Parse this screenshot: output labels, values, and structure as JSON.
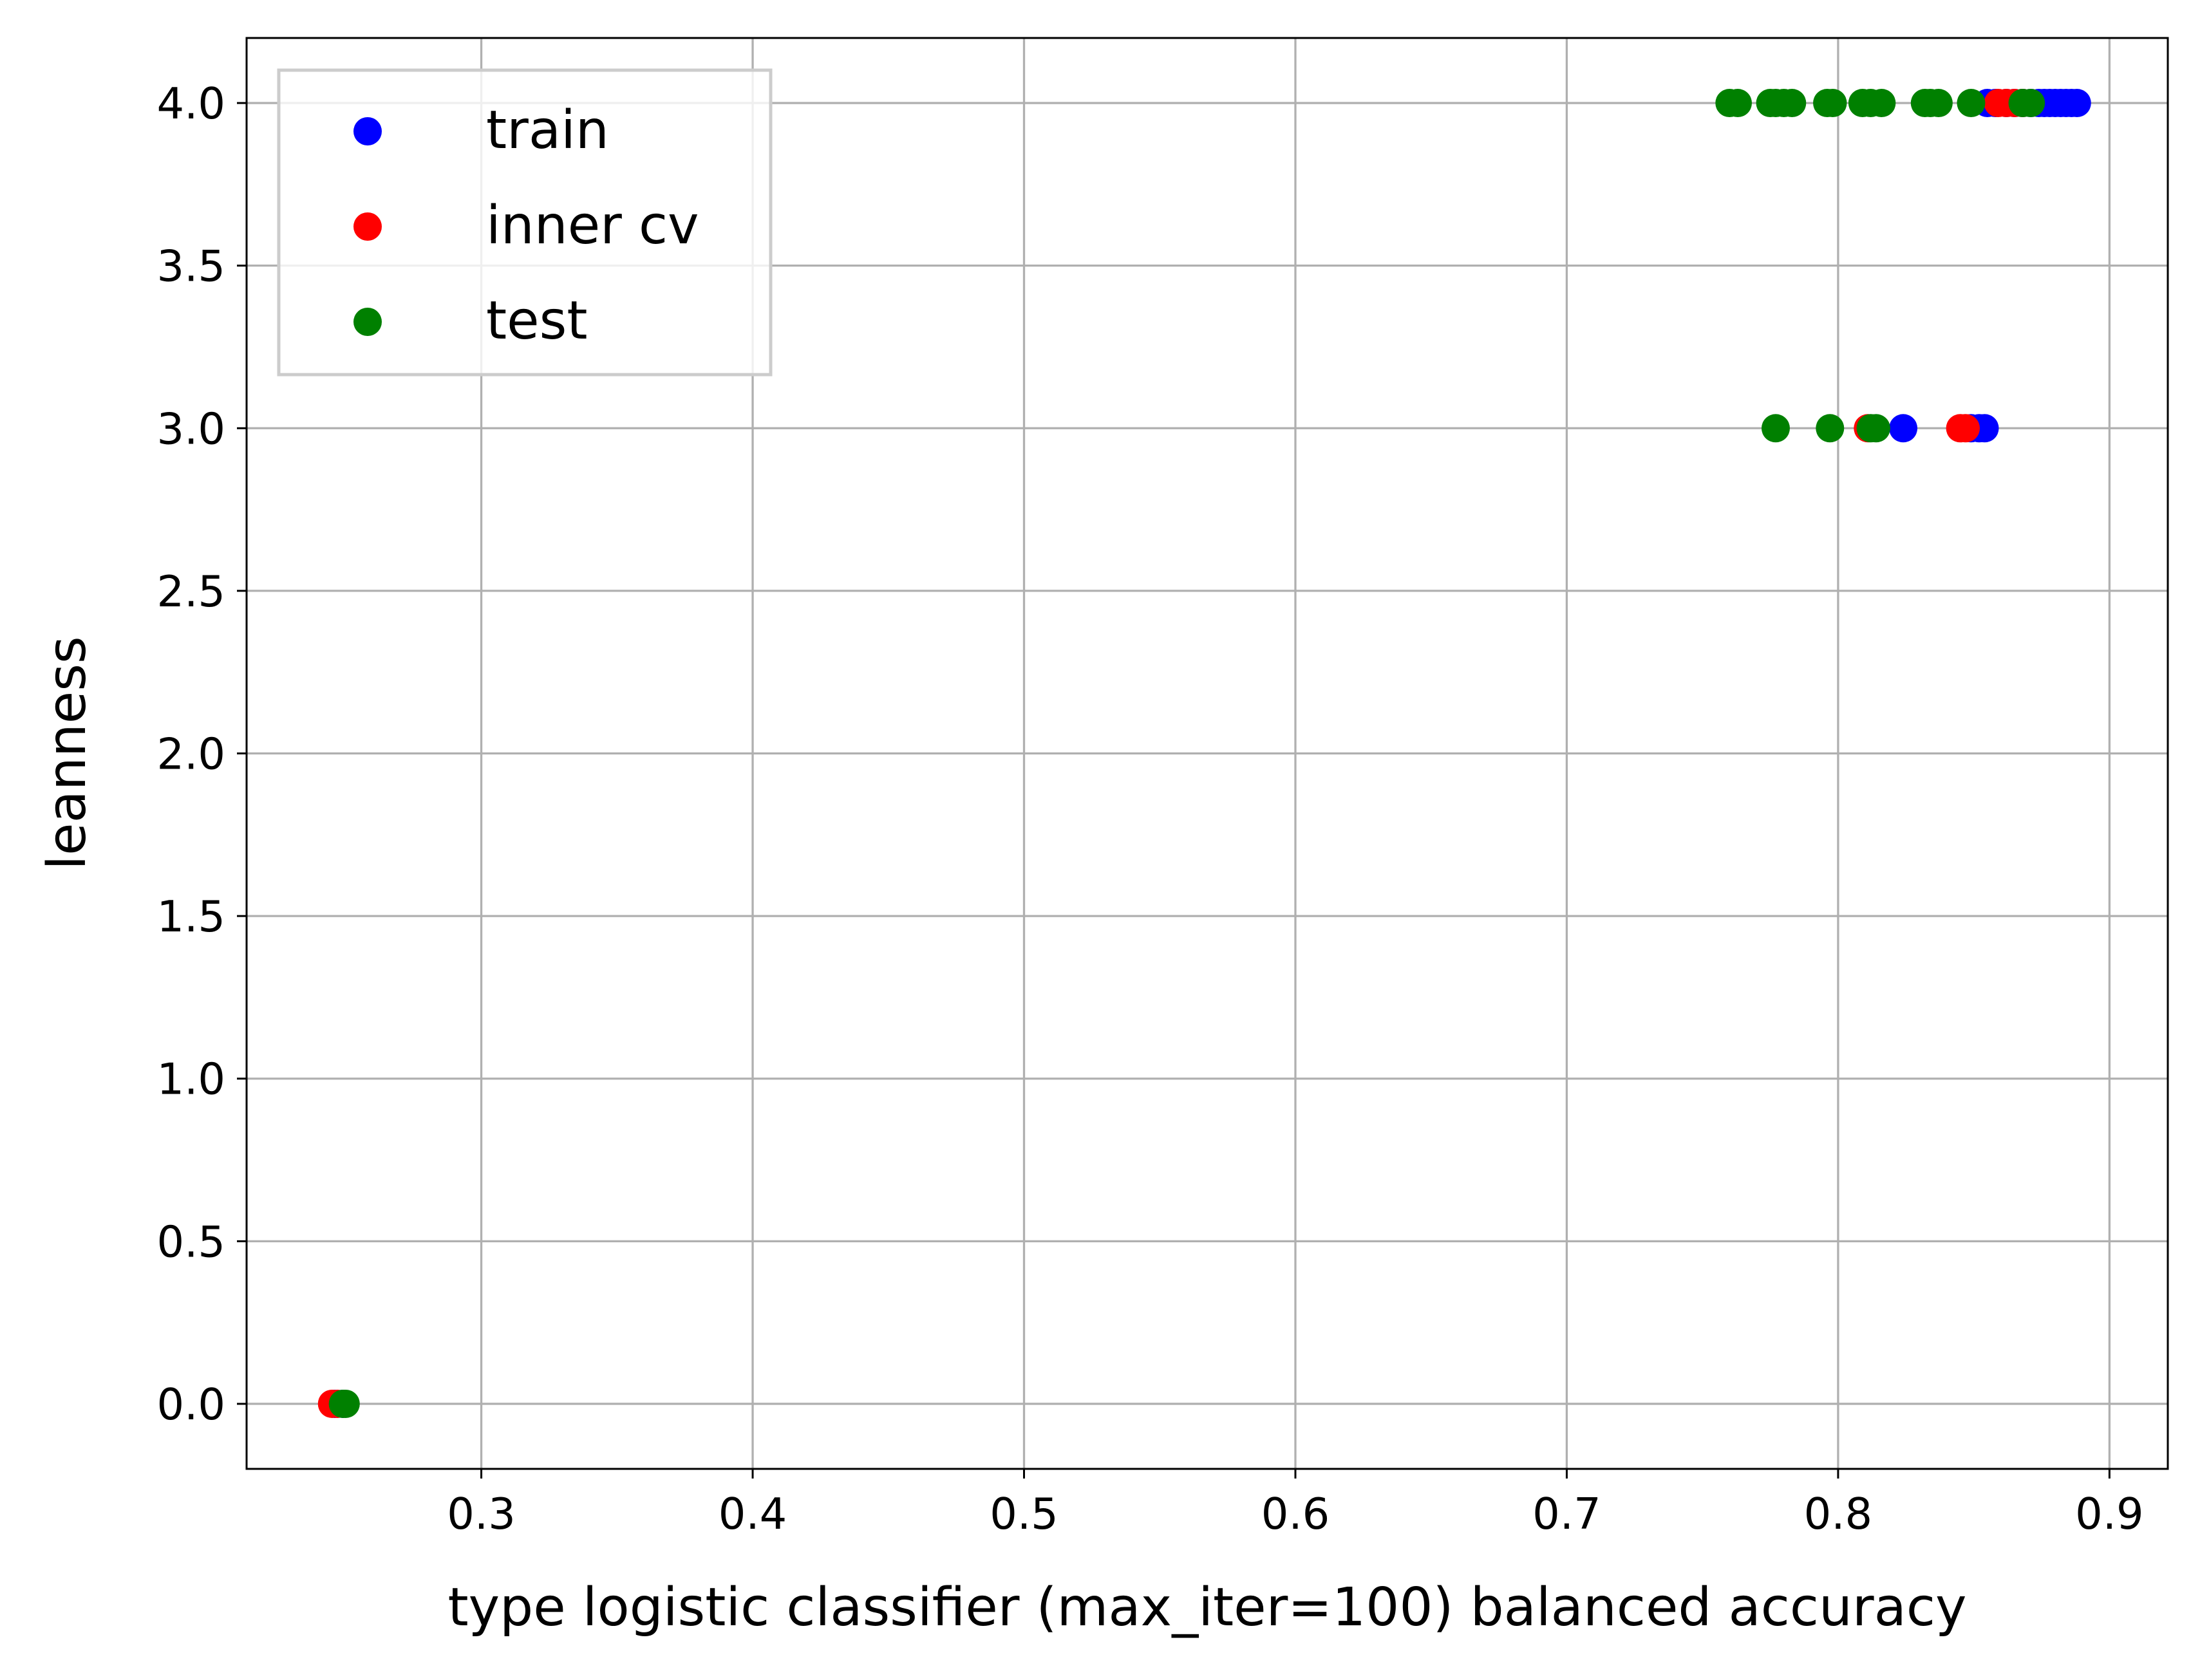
{
  "chart_data": {
    "type": "scatter",
    "title": "",
    "xlabel": "type logistic classifier (max_iter=100) balanced accuracy",
    "ylabel": "leanness",
    "xlim": [
      0.2135,
      0.9215
    ],
    "ylim": [
      -0.2,
      4.2
    ],
    "xticks": [
      0.3,
      0.4,
      0.5,
      0.6,
      0.7,
      0.8,
      0.9
    ],
    "xtick_labels": [
      "0.3",
      "0.4",
      "0.5",
      "0.6",
      "0.7",
      "0.8",
      "0.9"
    ],
    "yticks": [
      0.0,
      0.5,
      1.0,
      1.5,
      2.0,
      2.5,
      3.0,
      3.5,
      4.0
    ],
    "ytick_labels": [
      "0.0",
      "0.5",
      "1.0",
      "1.5",
      "2.0",
      "2.5",
      "3.0",
      "3.5",
      "4.0"
    ],
    "grid": true,
    "legend_position": "top-left",
    "series": [
      {
        "name": "train",
        "color": "#0000ff",
        "points": [
          [
            0.246,
            0.0
          ],
          [
            0.249,
            0.0
          ],
          [
            0.824,
            3.0
          ],
          [
            0.849,
            3.0
          ],
          [
            0.852,
            3.0
          ],
          [
            0.854,
            3.0
          ],
          [
            0.855,
            4.0
          ],
          [
            0.858,
            4.0
          ],
          [
            0.862,
            4.0
          ],
          [
            0.865,
            4.0
          ],
          [
            0.868,
            4.0
          ],
          [
            0.871,
            4.0
          ],
          [
            0.874,
            4.0
          ],
          [
            0.876,
            4.0
          ],
          [
            0.878,
            4.0
          ],
          [
            0.88,
            4.0
          ],
          [
            0.882,
            4.0
          ],
          [
            0.884,
            4.0
          ],
          [
            0.886,
            4.0
          ],
          [
            0.888,
            4.0
          ]
        ]
      },
      {
        "name": "inner cv",
        "color": "#ff0000",
        "points": [
          [
            0.245,
            0.0
          ],
          [
            0.247,
            0.0
          ],
          [
            0.811,
            3.0
          ],
          [
            0.845,
            3.0
          ],
          [
            0.847,
            3.0
          ],
          [
            0.859,
            4.0
          ],
          [
            0.862,
            4.0
          ],
          [
            0.865,
            4.0
          ],
          [
            0.868,
            4.0
          ]
        ]
      },
      {
        "name": "test",
        "color": "#008000",
        "points": [
          [
            0.249,
            0.0
          ],
          [
            0.25,
            0.0
          ],
          [
            0.777,
            3.0
          ],
          [
            0.797,
            3.0
          ],
          [
            0.812,
            3.0
          ],
          [
            0.814,
            3.0
          ],
          [
            0.76,
            4.0
          ],
          [
            0.763,
            4.0
          ],
          [
            0.775,
            4.0
          ],
          [
            0.777,
            4.0
          ],
          [
            0.78,
            4.0
          ],
          [
            0.783,
            4.0
          ],
          [
            0.796,
            4.0
          ],
          [
            0.798,
            4.0
          ],
          [
            0.809,
            4.0
          ],
          [
            0.812,
            4.0
          ],
          [
            0.816,
            4.0
          ],
          [
            0.832,
            4.0
          ],
          [
            0.834,
            4.0
          ],
          [
            0.837,
            4.0
          ],
          [
            0.849,
            4.0
          ],
          [
            0.868,
            4.0
          ],
          [
            0.871,
            4.0
          ]
        ]
      }
    ]
  }
}
